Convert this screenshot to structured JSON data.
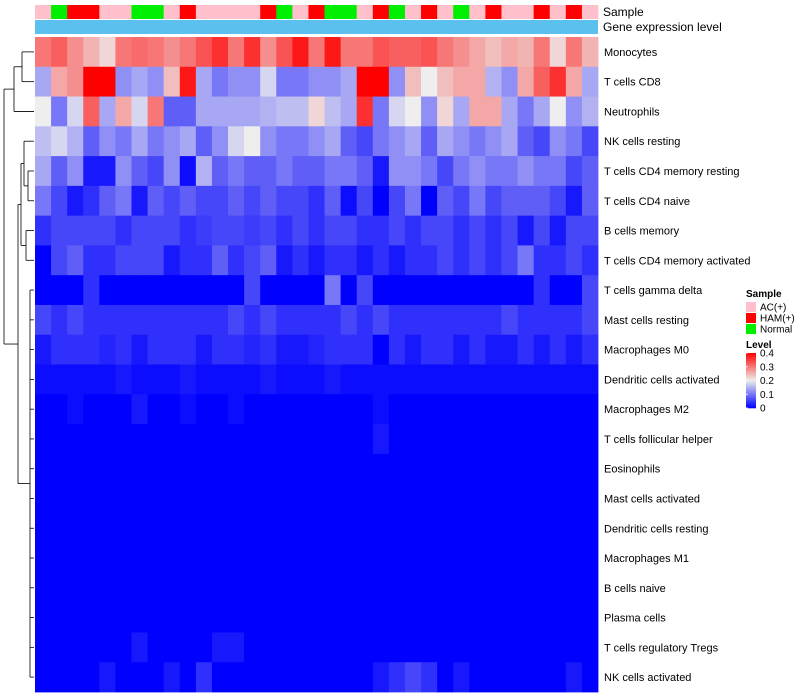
{
  "chart_data": {
    "type": "heatmap",
    "title": "",
    "annotations": {
      "sample_label": "Sample",
      "gene_expression_label": "Gene expression level",
      "gene_expression_color": "#5bc0ee"
    },
    "sample_groups": [
      "AC(+)",
      "HAM(+)",
      "Normal"
    ],
    "group_colors": {
      "AC(+)": "#ffc0cb",
      "HAM(+)": "#ff0000",
      "Normal": "#00ee00"
    },
    "columns": [
      "AC(+)",
      "Normal",
      "HAM(+)",
      "HAM(+)",
      "AC(+)",
      "AC(+)",
      "Normal",
      "Normal",
      "AC(+)",
      "HAM(+)",
      "AC(+)",
      "AC(+)",
      "AC(+)",
      "AC(+)",
      "HAM(+)",
      "Normal",
      "AC(+)",
      "HAM(+)",
      "Normal",
      "Normal",
      "AC(+)",
      "HAM(+)",
      "Normal",
      "AC(+)",
      "HAM(+)",
      "AC(+)",
      "Normal",
      "AC(+)",
      "HAM(+)",
      "AC(+)",
      "AC(+)",
      "HAM(+)",
      "AC(+)",
      "HAM(+)",
      "AC(+)"
    ],
    "rows": [
      "Monocytes",
      "T cells CD8",
      "Neutrophils",
      "NK cells resting",
      "T cells CD4 memory resting",
      "T cells CD4 naive",
      "B cells memory",
      "T cells CD4 memory activated",
      "T cells gamma delta",
      "Mast cells resting",
      "Macrophages M0",
      "Dendritic cells activated",
      "Macrophages M2",
      "T cells follicular helper",
      "Eosinophils",
      "Mast cells activated",
      "Dendritic cells resting",
      "Macrophages M1",
      "B cells naive",
      "Plasma cells",
      "T cells regulatory  Tregs",
      "NK cells activated"
    ],
    "values": [
      [
        0.3,
        0.32,
        0.28,
        0.25,
        0.22,
        0.3,
        0.31,
        0.3,
        0.28,
        0.3,
        0.33,
        0.36,
        0.3,
        0.36,
        0.28,
        0.33,
        0.38,
        0.3,
        0.38,
        0.3,
        0.3,
        0.33,
        0.32,
        0.32,
        0.33,
        0.3,
        0.28,
        0.26,
        0.24,
        0.26,
        0.25,
        0.3,
        0.22,
        0.3,
        0.25
      ],
      [
        0.14,
        0.26,
        0.28,
        0.4,
        0.4,
        0.12,
        0.14,
        0.12,
        0.24,
        0.38,
        0.14,
        0.1,
        0.12,
        0.12,
        0.18,
        0.1,
        0.1,
        0.12,
        0.12,
        0.14,
        0.4,
        0.4,
        0.12,
        0.24,
        0.2,
        0.24,
        0.26,
        0.26,
        0.15,
        0.12,
        0.26,
        0.32,
        0.36,
        0.26,
        0.14
      ],
      [
        0.2,
        0.1,
        0.18,
        0.32,
        0.14,
        0.26,
        0.18,
        0.3,
        0.08,
        0.08,
        0.14,
        0.14,
        0.14,
        0.14,
        0.15,
        0.16,
        0.16,
        0.22,
        0.16,
        0.14,
        0.36,
        0.1,
        0.18,
        0.2,
        0.12,
        0.22,
        0.14,
        0.26,
        0.26,
        0.14,
        0.1,
        0.14,
        0.2,
        0.12,
        0.15
      ],
      [
        0.16,
        0.18,
        0.15,
        0.08,
        0.12,
        0.1,
        0.14,
        0.1,
        0.12,
        0.14,
        0.08,
        0.12,
        0.18,
        0.2,
        0.12,
        0.1,
        0.1,
        0.12,
        0.14,
        0.08,
        0.06,
        0.1,
        0.12,
        0.14,
        0.08,
        0.14,
        0.12,
        0.1,
        0.12,
        0.14,
        0.08,
        0.06,
        0.12,
        0.1,
        0.06
      ],
      [
        0.14,
        0.08,
        0.12,
        0.02,
        0.02,
        0.12,
        0.08,
        0.06,
        0.12,
        0.01,
        0.15,
        0.08,
        0.1,
        0.08,
        0.08,
        0.1,
        0.08,
        0.08,
        0.1,
        0.1,
        0.08,
        0.02,
        0.12,
        0.12,
        0.1,
        0.06,
        0.1,
        0.12,
        0.1,
        0.1,
        0.12,
        0.1,
        0.1,
        0.06,
        0.08
      ],
      [
        0.1,
        0.06,
        0.02,
        0.04,
        0.08,
        0.1,
        0.02,
        0.08,
        0.06,
        0.08,
        0.06,
        0.06,
        0.08,
        0.06,
        0.08,
        0.06,
        0.06,
        0.04,
        0.08,
        0.01,
        0.06,
        0.0,
        0.06,
        0.1,
        0.0,
        0.08,
        0.06,
        0.1,
        0.06,
        0.08,
        0.08,
        0.08,
        0.06,
        0.02,
        0.08
      ],
      [
        0.04,
        0.06,
        0.06,
        0.06,
        0.06,
        0.04,
        0.06,
        0.06,
        0.06,
        0.04,
        0.05,
        0.06,
        0.06,
        0.05,
        0.06,
        0.04,
        0.06,
        0.04,
        0.06,
        0.06,
        0.04,
        0.04,
        0.06,
        0.04,
        0.06,
        0.06,
        0.04,
        0.06,
        0.04,
        0.06,
        0.02,
        0.06,
        0.02,
        0.06,
        0.06
      ],
      [
        0.0,
        0.06,
        0.08,
        0.04,
        0.04,
        0.06,
        0.06,
        0.06,
        0.02,
        0.04,
        0.04,
        0.08,
        0.04,
        0.06,
        0.08,
        0.02,
        0.04,
        0.02,
        0.04,
        0.04,
        0.02,
        0.04,
        0.02,
        0.04,
        0.04,
        0.06,
        0.04,
        0.06,
        0.04,
        0.06,
        0.1,
        0.04,
        0.04,
        0.06,
        0.04
      ],
      [
        0.0,
        0.0,
        0.0,
        0.04,
        0.0,
        0.0,
        0.0,
        0.0,
        0.0,
        0.0,
        0.0,
        0.0,
        0.0,
        0.06,
        0.0,
        0.0,
        0.0,
        0.0,
        0.1,
        0.0,
        0.06,
        0.0,
        0.0,
        0.0,
        0.0,
        0.0,
        0.0,
        0.0,
        0.0,
        0.0,
        0.0,
        0.04,
        0.0,
        0.0,
        0.06
      ],
      [
        0.06,
        0.04,
        0.06,
        0.04,
        0.04,
        0.04,
        0.04,
        0.04,
        0.04,
        0.04,
        0.04,
        0.04,
        0.06,
        0.04,
        0.06,
        0.04,
        0.04,
        0.04,
        0.04,
        0.06,
        0.04,
        0.06,
        0.04,
        0.04,
        0.04,
        0.04,
        0.04,
        0.04,
        0.04,
        0.06,
        0.04,
        0.04,
        0.04,
        0.04,
        0.06
      ],
      [
        0.02,
        0.04,
        0.04,
        0.04,
        0.03,
        0.04,
        0.02,
        0.04,
        0.04,
        0.04,
        0.02,
        0.04,
        0.04,
        0.03,
        0.04,
        0.02,
        0.02,
        0.03,
        0.04,
        0.04,
        0.04,
        0.0,
        0.04,
        0.02,
        0.04,
        0.04,
        0.02,
        0.04,
        0.02,
        0.02,
        0.04,
        0.02,
        0.04,
        0.02,
        0.04
      ],
      [
        0.01,
        0.01,
        0.01,
        0.01,
        0.01,
        0.02,
        0.01,
        0.01,
        0.01,
        0.02,
        0.01,
        0.01,
        0.01,
        0.01,
        0.02,
        0.01,
        0.01,
        0.01,
        0.02,
        0.01,
        0.01,
        0.01,
        0.01,
        0.01,
        0.01,
        0.01,
        0.01,
        0.01,
        0.01,
        0.01,
        0.01,
        0.01,
        0.01,
        0.01,
        0.01
      ],
      [
        0.0,
        0.0,
        0.01,
        0.0,
        0.0,
        0.0,
        0.02,
        0.0,
        0.0,
        0.01,
        0.0,
        0.0,
        0.01,
        0.0,
        0.0,
        0.0,
        0.0,
        0.0,
        0.0,
        0.0,
        0.0,
        0.01,
        0.0,
        0.0,
        0.0,
        0.0,
        0.0,
        0.0,
        0.0,
        0.0,
        0.0,
        0.0,
        0.0,
        0.0,
        0.0
      ],
      [
        0.0,
        0.0,
        0.0,
        0.0,
        0.0,
        0.0,
        0.0,
        0.0,
        0.0,
        0.0,
        0.0,
        0.0,
        0.0,
        0.0,
        0.0,
        0.0,
        0.0,
        0.0,
        0.0,
        0.0,
        0.0,
        0.02,
        0.0,
        0.0,
        0.0,
        0.0,
        0.0,
        0.0,
        0.0,
        0.0,
        0.0,
        0.0,
        0.0,
        0.0,
        0.0
      ],
      [
        0.0,
        0.0,
        0.0,
        0.0,
        0.0,
        0.0,
        0.0,
        0.0,
        0.0,
        0.0,
        0.0,
        0.0,
        0.0,
        0.0,
        0.0,
        0.0,
        0.0,
        0.0,
        0.0,
        0.0,
        0.0,
        0.0,
        0.0,
        0.0,
        0.0,
        0.0,
        0.0,
        0.0,
        0.0,
        0.0,
        0.0,
        0.0,
        0.0,
        0.0,
        0.0
      ],
      [
        0.0,
        0.0,
        0.0,
        0.0,
        0.0,
        0.0,
        0.0,
        0.0,
        0.0,
        0.0,
        0.0,
        0.0,
        0.0,
        0.0,
        0.0,
        0.0,
        0.0,
        0.0,
        0.0,
        0.0,
        0.0,
        0.0,
        0.0,
        0.0,
        0.0,
        0.0,
        0.0,
        0.0,
        0.0,
        0.0,
        0.0,
        0.0,
        0.0,
        0.0,
        0.0
      ],
      [
        0.0,
        0.0,
        0.0,
        0.0,
        0.0,
        0.0,
        0.0,
        0.0,
        0.0,
        0.0,
        0.0,
        0.0,
        0.0,
        0.0,
        0.0,
        0.0,
        0.0,
        0.0,
        0.0,
        0.0,
        0.0,
        0.0,
        0.0,
        0.0,
        0.0,
        0.0,
        0.0,
        0.0,
        0.0,
        0.0,
        0.0,
        0.0,
        0.0,
        0.0,
        0.0
      ],
      [
        0.0,
        0.0,
        0.0,
        0.0,
        0.0,
        0.0,
        0.0,
        0.0,
        0.0,
        0.0,
        0.0,
        0.0,
        0.0,
        0.0,
        0.0,
        0.0,
        0.0,
        0.0,
        0.0,
        0.0,
        0.0,
        0.0,
        0.0,
        0.0,
        0.0,
        0.0,
        0.0,
        0.0,
        0.0,
        0.0,
        0.0,
        0.0,
        0.0,
        0.0,
        0.0
      ],
      [
        0.0,
        0.0,
        0.0,
        0.0,
        0.0,
        0.0,
        0.0,
        0.0,
        0.0,
        0.0,
        0.0,
        0.0,
        0.0,
        0.0,
        0.0,
        0.0,
        0.0,
        0.0,
        0.0,
        0.0,
        0.0,
        0.0,
        0.0,
        0.0,
        0.0,
        0.0,
        0.0,
        0.0,
        0.0,
        0.0,
        0.0,
        0.0,
        0.0,
        0.0,
        0.0
      ],
      [
        0.0,
        0.0,
        0.0,
        0.0,
        0.0,
        0.0,
        0.0,
        0.0,
        0.0,
        0.0,
        0.0,
        0.0,
        0.0,
        0.0,
        0.0,
        0.0,
        0.0,
        0.0,
        0.0,
        0.0,
        0.0,
        0.0,
        0.0,
        0.0,
        0.0,
        0.0,
        0.0,
        0.0,
        0.0,
        0.0,
        0.0,
        0.0,
        0.0,
        0.0,
        0.0
      ],
      [
        0.0,
        0.0,
        0.0,
        0.0,
        0.0,
        0.0,
        0.02,
        0.0,
        0.0,
        0.0,
        0.0,
        0.02,
        0.02,
        0.0,
        0.0,
        0.0,
        0.0,
        0.0,
        0.0,
        0.0,
        0.0,
        0.0,
        0.0,
        0.0,
        0.0,
        0.0,
        0.0,
        0.0,
        0.0,
        0.0,
        0.0,
        0.0,
        0.0,
        0.0,
        0.0
      ],
      [
        0.0,
        0.0,
        0.0,
        0.0,
        0.02,
        0.0,
        0.0,
        0.0,
        0.02,
        0.0,
        0.04,
        0.0,
        0.0,
        0.0,
        0.0,
        0.0,
        0.0,
        0.0,
        0.0,
        0.0,
        0.0,
        0.02,
        0.04,
        0.06,
        0.04,
        0.0,
        0.02,
        0.0,
        0.0,
        0.0,
        0.0,
        0.0,
        0.0,
        0.02,
        0.0
      ]
    ],
    "color_scale": {
      "min": 0,
      "max": 0.4,
      "mid": 0.2,
      "low_color": "#0000ff",
      "mid_color": "#eeeeee",
      "high_color": "#ff0000"
    },
    "legend": {
      "sample_title": "Sample",
      "level_title": "Level",
      "level_ticks": [
        "0.4",
        "0.3",
        "0.2",
        "0.1",
        "0"
      ],
      "level_tick_values": [
        0.4,
        0.3,
        0.2,
        0.1,
        0
      ],
      "position": "right"
    }
  }
}
